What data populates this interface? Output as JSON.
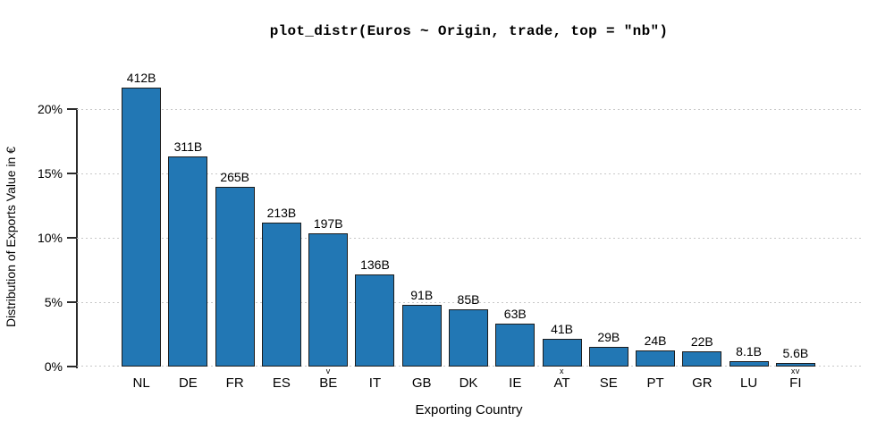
{
  "chart_data": {
    "type": "bar",
    "title": "plot_distr(Euros ~ Origin, trade, top = \"nb\")",
    "xlabel": "Exporting Country",
    "ylabel": "Distribution of Exports Value in €",
    "categories": [
      "NL",
      "DE",
      "FR",
      "ES",
      "BE",
      "IT",
      "GB",
      "DK",
      "IE",
      "AT",
      "SE",
      "PT",
      "GR",
      "LU",
      "FI"
    ],
    "category_markers": [
      "",
      "",
      "",
      "",
      "v",
      "",
      "",
      "",
      "",
      "x",
      "",
      "",
      "",
      "",
      "xv"
    ],
    "values_billions_eur": [
      412,
      311,
      265,
      213,
      197,
      136,
      91,
      85,
      63,
      41,
      29,
      24,
      22,
      8.1,
      5.6
    ],
    "bar_labels": [
      "412B",
      "311B",
      "265B",
      "213B",
      "197B",
      "136B",
      "91B",
      "85B",
      "63B",
      "41B",
      "29B",
      "24B",
      "22B",
      "8.1B",
      "5.6B"
    ],
    "percent_of_total": [
      21.65,
      16.35,
      13.93,
      11.19,
      10.35,
      7.15,
      4.78,
      4.47,
      3.31,
      2.15,
      1.52,
      1.26,
      1.16,
      0.43,
      0.29
    ],
    "y_axis": {
      "tick_labels": [
        "0%",
        "5%",
        "10%",
        "15%",
        "20%"
      ],
      "tick_values": [
        0,
        5,
        10,
        15,
        20
      ],
      "max": 20
    },
    "grid": {
      "horizontal": true,
      "style": "dotted"
    },
    "legend": "none",
    "colors": {
      "bar_fill": "#2277b4",
      "bar_border": "#1c1c1c",
      "gridline": "#c8c8c8",
      "axis": "#2b2b2b",
      "text": "#000000"
    }
  }
}
